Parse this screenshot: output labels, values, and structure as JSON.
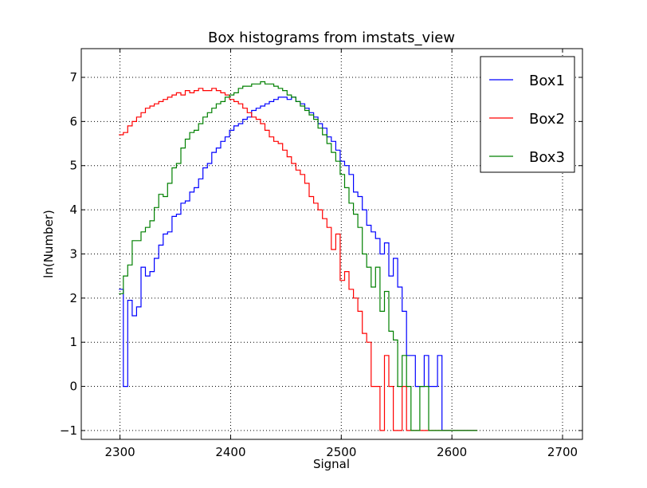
{
  "chart_data": {
    "type": "line",
    "title": "Box histograms from imstats_view",
    "xlabel": "Signal",
    "ylabel": "ln(Number)",
    "xlim": [
      2265,
      2718
    ],
    "ylim": [
      -1.2,
      7.65
    ],
    "xticks": [
      2300,
      2400,
      2500,
      2600,
      2700
    ],
    "yticks": [
      -1,
      0,
      1,
      2,
      3,
      4,
      5,
      6,
      7
    ],
    "ytick_labels": [
      "−1",
      "0",
      "1",
      "2",
      "3",
      "4",
      "5",
      "6",
      "7"
    ],
    "grid": true,
    "legend_position": "top-right",
    "step_width": 4,
    "series": [
      {
        "name": "Box1",
        "color": "#0000ff",
        "x0": 2299,
        "values": [
          2.2,
          0.0,
          1.95,
          1.6,
          1.8,
          2.7,
          2.5,
          2.6,
          2.9,
          3.2,
          3.45,
          3.5,
          3.85,
          3.9,
          4.15,
          4.2,
          4.4,
          4.5,
          4.7,
          4.95,
          5.05,
          5.3,
          5.4,
          5.55,
          5.65,
          5.8,
          5.9,
          5.95,
          6.05,
          6.1,
          6.25,
          6.3,
          6.35,
          6.4,
          6.45,
          6.5,
          6.55,
          6.55,
          6.5,
          6.55,
          6.45,
          6.4,
          6.3,
          6.2,
          6.1,
          5.95,
          5.85,
          5.65,
          5.55,
          5.35,
          5.1,
          5.0,
          4.8,
          4.4,
          4.3,
          4.0,
          3.65,
          3.5,
          3.35,
          3.0,
          3.25,
          2.5,
          2.9,
          2.25,
          1.7,
          0.7,
          0.7,
          0.0,
          0.0,
          0.7,
          0.0,
          0.0,
          0.7,
          -1.0,
          -1.0,
          -1.0,
          -1.0,
          -1.0,
          -1.0,
          -1.0,
          -1.0
        ]
      },
      {
        "name": "Box2",
        "color": "#ff0000",
        "x0": 2299,
        "values": [
          5.7,
          5.75,
          5.9,
          6.0,
          6.1,
          6.2,
          6.3,
          6.35,
          6.4,
          6.45,
          6.5,
          6.55,
          6.6,
          6.65,
          6.6,
          6.7,
          6.65,
          6.7,
          6.75,
          6.7,
          6.7,
          6.75,
          6.7,
          6.65,
          6.6,
          6.5,
          6.45,
          6.4,
          6.3,
          6.2,
          6.1,
          6.05,
          5.95,
          5.8,
          5.65,
          5.55,
          5.5,
          5.35,
          5.2,
          5.05,
          4.9,
          4.8,
          4.6,
          4.3,
          4.15,
          4.0,
          3.8,
          3.6,
          3.1,
          3.45,
          2.4,
          2.6,
          2.2,
          2.0,
          1.7,
          1.2,
          1.0,
          0.0,
          0.0,
          -1.0,
          0.7,
          0.0,
          -1.0,
          -1.0,
          0.0,
          -1.0,
          -1.0,
          -1.0,
          -1.0,
          -1.0,
          -1.0,
          -1.0,
          -1.0,
          -1.0,
          -1.0,
          -1.0,
          -1.0,
          -1.0,
          -1.0,
          -1.0,
          -1.0
        ]
      },
      {
        "name": "Box3",
        "color": "#008000",
        "x0": 2299,
        "values": [
          2.1,
          2.5,
          2.75,
          3.3,
          3.3,
          3.5,
          3.6,
          3.75,
          4.05,
          4.35,
          4.3,
          4.6,
          4.95,
          5.05,
          5.4,
          5.6,
          5.75,
          5.8,
          5.95,
          6.1,
          6.2,
          6.3,
          6.4,
          6.45,
          6.55,
          6.6,
          6.65,
          6.75,
          6.8,
          6.8,
          6.85,
          6.85,
          6.9,
          6.85,
          6.85,
          6.8,
          6.75,
          6.7,
          6.6,
          6.55,
          6.45,
          6.35,
          6.25,
          6.15,
          6.05,
          5.85,
          5.7,
          5.5,
          5.3,
          5.1,
          4.8,
          4.5,
          4.15,
          3.9,
          3.6,
          3.0,
          2.7,
          2.25,
          2.7,
          1.7,
          2.15,
          1.25,
          1.05,
          0.0,
          0.7,
          0.0,
          -1.0,
          -1.0,
          0.0,
          0.0,
          -1.0,
          -1.0,
          -1.0,
          -1.0,
          -1.0,
          -1.0,
          -1.0,
          -1.0,
          -1.0,
          -1.0,
          -1.0
        ]
      }
    ]
  }
}
